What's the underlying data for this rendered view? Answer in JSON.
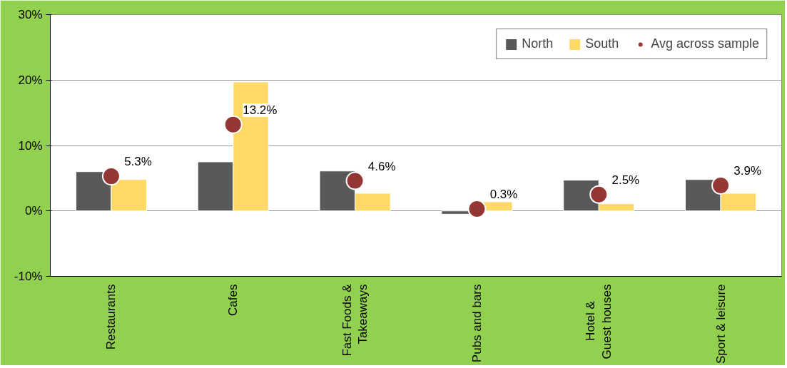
{
  "chart_data": {
    "type": "bar",
    "categories": [
      "Restaurants",
      "Cafes",
      "Fast Foods &\nTakeaways",
      "Pubs and bars",
      "Hotel      &\nGuest houses",
      "Sport & leisure"
    ],
    "series": [
      {
        "name": "North",
        "color": "#595959",
        "values": [
          6.0,
          7.5,
          6.1,
          -0.5,
          4.7,
          4.8
        ]
      },
      {
        "name": "South",
        "color": "#ffd966",
        "values": [
          4.8,
          19.7,
          2.7,
          1.4,
          1.1,
          2.7
        ]
      },
      {
        "name": "Avg across sample",
        "type": "scatter",
        "color": "#943634",
        "values": [
          5.3,
          13.2,
          4.6,
          0.3,
          2.5,
          3.9
        ],
        "value_labels": [
          "5.3%",
          "13.2%",
          "4.6%",
          "0.3%",
          "2.5%",
          "3.9%"
        ]
      }
    ],
    "ylim": [
      -10,
      30
    ],
    "yticks": [
      {
        "value": -10,
        "label": "-10%"
      },
      {
        "value": 0,
        "label": "0%"
      },
      {
        "value": 10,
        "label": "10%"
      },
      {
        "value": 20,
        "label": "20%"
      },
      {
        "value": 30,
        "label": "30%"
      }
    ],
    "grid": "y",
    "legend": "top right",
    "marker": "circle"
  }
}
